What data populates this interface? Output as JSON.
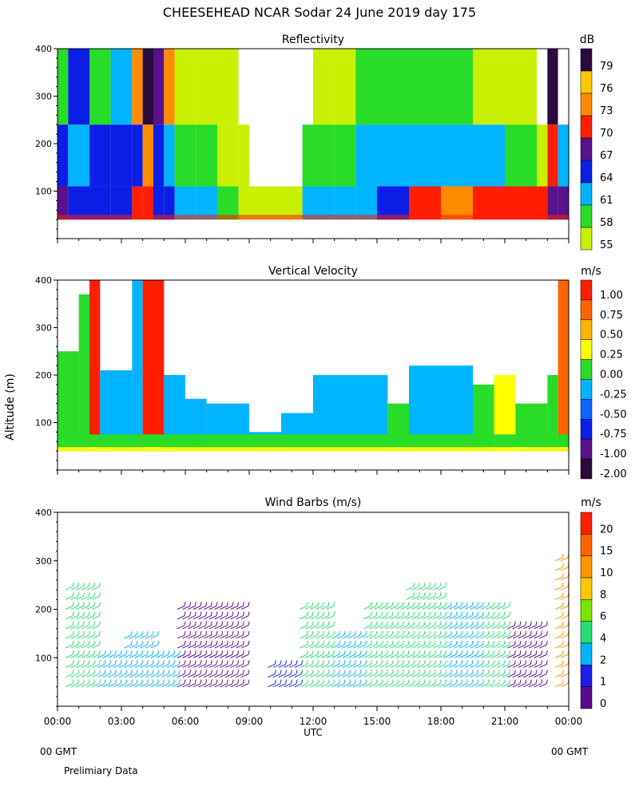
{
  "page": {
    "title": "CHEESEHEAD  NCAR Sodar  24 June 2019  day 175",
    "y_axis_label": "Altitude (m)",
    "x_axis_label": "UTC",
    "footer_left_gmt": "00 GMT",
    "footer_right_gmt": "00 GMT",
    "footer_note": "Prelimiary Data"
  },
  "chart_data": [
    {
      "type": "heatmap",
      "title": "Reflectivity",
      "units": "dB",
      "x_ticks": [
        "00:00",
        "03:00",
        "06:00",
        "09:00",
        "12:00",
        "15:00",
        "18:00",
        "21:00",
        "00:00"
      ],
      "xlim_hours": [
        0,
        24
      ],
      "ylim": [
        0,
        400
      ],
      "y_ticks": [
        100,
        200,
        300,
        400
      ],
      "colorbar": {
        "levels": [
          "79",
          "76",
          "73",
          "70",
          "67",
          "64",
          "61",
          "58",
          "55"
        ],
        "colors": [
          "#2b0a3d",
          "#ffc800",
          "#ff8c00",
          "#ff1e00",
          "#5a128c",
          "#0a1ee6",
          "#00b4ff",
          "#28dc28",
          "#c8f000"
        ]
      },
      "bands": [
        {
          "start": 0.0,
          "end": 0.5,
          "low": "#5a128c",
          "mid": "#0a1ee6",
          "top": "#28dc28"
        },
        {
          "start": 0.5,
          "end": 1.5,
          "low": "#0a1ee6",
          "mid": "#00b4ff",
          "top": "#0a1ee6"
        },
        {
          "start": 1.5,
          "end": 2.5,
          "low": "#0a1ee6",
          "mid": "#0a1ee6",
          "top": "#28dc28"
        },
        {
          "start": 2.5,
          "end": 3.5,
          "low": "#0a1ee6",
          "mid": "#0a1ee6",
          "top": "#00b4ff"
        },
        {
          "start": 3.5,
          "end": 4.0,
          "low": "#ff1e00",
          "mid": "#0a1ee6",
          "top": "#ff8c00"
        },
        {
          "start": 4.0,
          "end": 4.5,
          "low": "#ff1e00",
          "mid": "#ff8c00",
          "top": "#2b0a3d"
        },
        {
          "start": 4.5,
          "end": 5.0,
          "low": "#0a1ee6",
          "mid": "#0a1ee6",
          "top": "#5a128c"
        },
        {
          "start": 5.0,
          "end": 5.5,
          "low": "#0a1ee6",
          "mid": "#00b4ff",
          "top": "#ff8c00"
        },
        {
          "start": 5.5,
          "end": 6.5,
          "low": "#00b4ff",
          "mid": "#28dc28",
          "top": "#c8f000"
        },
        {
          "start": 6.5,
          "end": 7.5,
          "low": "#00b4ff",
          "mid": "#28dc28",
          "top": "#c8f000"
        },
        {
          "start": 7.5,
          "end": 8.5,
          "low": "#28dc28",
          "mid": "#c8f000",
          "top": "#c8f000"
        },
        {
          "start": 8.5,
          "end": 9.0,
          "low": "#c8f000",
          "mid": "#c8f000",
          "top": "#ffffff"
        },
        {
          "start": 9.0,
          "end": 11.5,
          "low": "#c8f000",
          "mid": "#ffffff",
          "top": "#ffffff"
        },
        {
          "start": 11.5,
          "end": 12.0,
          "low": "#00b4ff",
          "mid": "#28dc28",
          "top": "#ffffff"
        },
        {
          "start": 12.0,
          "end": 13.0,
          "low": "#00b4ff",
          "mid": "#28dc28",
          "top": "#c8f000"
        },
        {
          "start": 13.0,
          "end": 14.0,
          "low": "#00b4ff",
          "mid": "#28dc28",
          "top": "#c8f000"
        },
        {
          "start": 14.0,
          "end": 15.0,
          "low": "#00b4ff",
          "mid": "#00b4ff",
          "top": "#28dc28"
        },
        {
          "start": 15.0,
          "end": 16.5,
          "low": "#0a1ee6",
          "mid": "#00b4ff",
          "top": "#28dc28"
        },
        {
          "start": 16.5,
          "end": 18.0,
          "low": "#ff1e00",
          "mid": "#00b4ff",
          "top": "#28dc28"
        },
        {
          "start": 18.0,
          "end": 19.5,
          "low": "#ff8c00",
          "mid": "#00b4ff",
          "top": "#28dc28"
        },
        {
          "start": 19.5,
          "end": 21.0,
          "low": "#ff1e00",
          "mid": "#00b4ff",
          "top": "#c8f000"
        },
        {
          "start": 21.0,
          "end": 22.5,
          "low": "#ff1e00",
          "mid": "#28dc28",
          "top": "#c8f000"
        },
        {
          "start": 22.5,
          "end": 23.0,
          "low": "#ff1e00",
          "mid": "#c8f000",
          "top": "#ffffff"
        },
        {
          "start": 23.0,
          "end": 23.5,
          "low": "#5a128c",
          "mid": "#ff1e00",
          "top": "#2b0a3d"
        },
        {
          "start": 23.5,
          "end": 24.0,
          "low": "#5a128c",
          "mid": "#00b4ff",
          "top": "#ffffff"
        }
      ]
    },
    {
      "type": "heatmap",
      "title": "Vertical Velocity",
      "units": "m/s",
      "x_ticks": [
        "00:00",
        "03:00",
        "06:00",
        "09:00",
        "12:00",
        "15:00",
        "18:00",
        "21:00",
        "00:00"
      ],
      "xlim_hours": [
        0,
        24
      ],
      "ylim": [
        0,
        400
      ],
      "y_ticks": [
        100,
        200,
        300,
        400
      ],
      "colorbar": {
        "levels": [
          "1.00",
          "0.75",
          "0.50",
          "0.25",
          "0.00",
          "-0.25",
          "-0.50",
          "-0.75",
          "-1.00",
          "-2.00"
        ],
        "colors": [
          "#ff1e00",
          "#ff6400",
          "#ffb400",
          "#ffff00",
          "#28dc28",
          "#00b4ff",
          "#0a64ff",
          "#0a1ee6",
          "#5a128c",
          "#2b0a3d"
        ]
      },
      "columns": [
        {
          "start": 0.0,
          "end": 1.0,
          "top": 250,
          "color": "#28dc28"
        },
        {
          "start": 1.0,
          "end": 1.5,
          "top": 370,
          "color": "#28dc28"
        },
        {
          "start": 1.5,
          "end": 2.0,
          "top": 400,
          "color": "#ff1e00"
        },
        {
          "start": 2.0,
          "end": 3.5,
          "top": 210,
          "color": "#00b4ff"
        },
        {
          "start": 3.5,
          "end": 4.0,
          "top": 400,
          "color": "#00b4ff"
        },
        {
          "start": 4.0,
          "end": 5.0,
          "top": 400,
          "color": "#ff1e00"
        },
        {
          "start": 5.0,
          "end": 6.0,
          "top": 200,
          "color": "#00b4ff"
        },
        {
          "start": 6.0,
          "end": 7.0,
          "top": 150,
          "color": "#00b4ff"
        },
        {
          "start": 7.0,
          "end": 9.0,
          "top": 140,
          "color": "#00b4ff"
        },
        {
          "start": 9.0,
          "end": 10.5,
          "top": 80,
          "color": "#00b4ff"
        },
        {
          "start": 10.5,
          "end": 12.0,
          "top": 120,
          "color": "#00b4ff"
        },
        {
          "start": 12.0,
          "end": 15.5,
          "top": 200,
          "color": "#00b4ff"
        },
        {
          "start": 15.5,
          "end": 16.5,
          "top": 140,
          "color": "#28dc28"
        },
        {
          "start": 16.5,
          "end": 19.5,
          "top": 220,
          "color": "#00b4ff"
        },
        {
          "start": 19.5,
          "end": 20.5,
          "top": 180,
          "color": "#28dc28"
        },
        {
          "start": 20.5,
          "end": 21.5,
          "top": 200,
          "color": "#ffff00"
        },
        {
          "start": 21.5,
          "end": 23.0,
          "top": 140,
          "color": "#28dc28"
        },
        {
          "start": 23.0,
          "end": 23.5,
          "top": 200,
          "color": "#28dc28"
        },
        {
          "start": 23.5,
          "end": 24.0,
          "top": 400,
          "color": "#ff6400"
        }
      ]
    },
    {
      "type": "scatter",
      "title": "Wind Barbs (m/s)",
      "units": "m/s",
      "x_ticks": [
        "00:00",
        "03:00",
        "06:00",
        "09:00",
        "12:00",
        "15:00",
        "18:00",
        "21:00",
        "00:00"
      ],
      "xlim_hours": [
        0,
        24
      ],
      "ylim": [
        0,
        400
      ],
      "y_ticks": [
        100,
        200,
        300,
        400
      ],
      "colorbar": {
        "levels": [
          "20",
          "15",
          "10",
          "8",
          "6",
          "4",
          "2",
          "1",
          "0"
        ],
        "colors": [
          "#ff1e00",
          "#ff6400",
          "#ff9600",
          "#ffc800",
          "#78e600",
          "#28dc78",
          "#00b4ff",
          "#1e1ee6",
          "#5a0a8c"
        ]
      },
      "barb_groups": [
        {
          "start": 0.25,
          "end": 1.75,
          "top": 250,
          "color": "#28dc78"
        },
        {
          "start": 1.75,
          "end": 3.0,
          "top": 100,
          "color": "#00b4ff"
        },
        {
          "start": 3.0,
          "end": 4.5,
          "top": 150,
          "color": "#00b4ff"
        },
        {
          "start": 4.5,
          "end": 5.5,
          "top": 110,
          "color": "#00b4ff"
        },
        {
          "start": 5.5,
          "end": 8.75,
          "top": 210,
          "color": "#5a0a8c"
        },
        {
          "start": 9.75,
          "end": 11.25,
          "top": 80,
          "color": "#1e1ee6"
        },
        {
          "start": 11.25,
          "end": 12.75,
          "top": 200,
          "color": "#28dc78"
        },
        {
          "start": 12.75,
          "end": 14.25,
          "top": 150,
          "color": "#00b4ff"
        },
        {
          "start": 14.25,
          "end": 16.25,
          "top": 210,
          "color": "#28dc78"
        },
        {
          "start": 16.25,
          "end": 18.0,
          "top": 240,
          "color": "#28dc78"
        },
        {
          "start": 18.0,
          "end": 19.75,
          "top": 200,
          "color": "#00b4ff"
        },
        {
          "start": 19.75,
          "end": 21.0,
          "top": 210,
          "color": "#28dc78"
        },
        {
          "start": 21.0,
          "end": 22.75,
          "top": 160,
          "color": "#5a0a8c"
        },
        {
          "start": 23.25,
          "end": 23.75,
          "top": 300,
          "color": "#ff9600"
        }
      ]
    }
  ]
}
